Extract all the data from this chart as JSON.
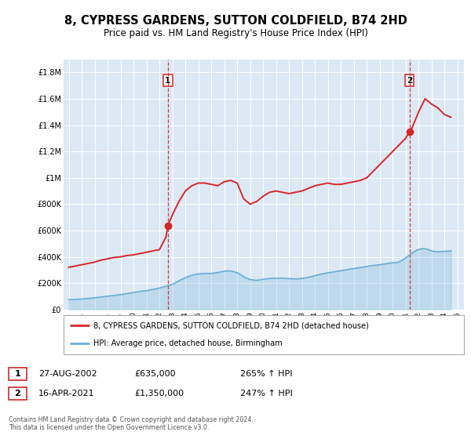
{
  "title": "8, CYPRESS GARDENS, SUTTON COLDFIELD, B74 2HD",
  "subtitle": "Price paid vs. HM Land Registry's House Price Index (HPI)",
  "title_fontsize": 10.5,
  "subtitle_fontsize": 8.5,
  "background_color": "#ffffff",
  "plot_bg_color": "#dce9f5",
  "grid_color": "#ffffff",
  "ylim": [
    0,
    1900000
  ],
  "xlim_start": 1994.6,
  "xlim_end": 2025.5,
  "yticks": [
    0,
    200000,
    400000,
    600000,
    800000,
    1000000,
    1200000,
    1400000,
    1600000,
    1800000
  ],
  "ytick_labels": [
    "£0",
    "£200K",
    "£400K",
    "£600K",
    "£800K",
    "£1M",
    "£1.2M",
    "£1.4M",
    "£1.6M",
    "£1.8M"
  ],
  "xticks": [
    1995,
    1996,
    1997,
    1998,
    1999,
    2000,
    2001,
    2002,
    2003,
    2004,
    2005,
    2006,
    2007,
    2008,
    2009,
    2010,
    2011,
    2012,
    2013,
    2014,
    2015,
    2016,
    2017,
    2018,
    2019,
    2020,
    2021,
    2022,
    2023,
    2024,
    2025
  ],
  "sale1_x": 2002.65,
  "sale1_y": 635000,
  "sale1_label": "1",
  "sale1_date": "27-AUG-2002",
  "sale1_price": "£635,000",
  "sale1_hpi": "265% ↑ HPI",
  "sale2_x": 2021.29,
  "sale2_y": 1350000,
  "sale2_label": "2",
  "sale2_date": "16-APR-2021",
  "sale2_price": "£1,350,000",
  "sale2_hpi": "247% ↑ HPI",
  "hpi_color": "#6baed6",
  "price_color": "#d62728",
  "dashed_line_color": "#d62728",
  "legend_label_price": "8, CYPRESS GARDENS, SUTTON COLDFIELD, B74 2HD (detached house)",
  "legend_label_hpi": "HPI: Average price, detached house, Birmingham",
  "footer_text": "Contains HM Land Registry data © Crown copyright and database right 2024.\nThis data is licensed under the Open Government Licence v3.0.",
  "hpi_data_x": [
    1995.0,
    1995.25,
    1995.5,
    1995.75,
    1996.0,
    1996.25,
    1996.5,
    1996.75,
    1997.0,
    1997.25,
    1997.5,
    1997.75,
    1998.0,
    1998.25,
    1998.5,
    1998.75,
    1999.0,
    1999.25,
    1999.5,
    1999.75,
    2000.0,
    2000.25,
    2000.5,
    2000.75,
    2001.0,
    2001.25,
    2001.5,
    2001.75,
    2002.0,
    2002.25,
    2002.5,
    2002.75,
    2003.0,
    2003.25,
    2003.5,
    2003.75,
    2004.0,
    2004.25,
    2004.5,
    2004.75,
    2005.0,
    2005.25,
    2005.5,
    2005.75,
    2006.0,
    2006.25,
    2006.5,
    2006.75,
    2007.0,
    2007.25,
    2007.5,
    2007.75,
    2008.0,
    2008.25,
    2008.5,
    2008.75,
    2009.0,
    2009.25,
    2009.5,
    2009.75,
    2010.0,
    2010.25,
    2010.5,
    2010.75,
    2011.0,
    2011.25,
    2011.5,
    2011.75,
    2012.0,
    2012.25,
    2012.5,
    2012.75,
    2013.0,
    2013.25,
    2013.5,
    2013.75,
    2014.0,
    2014.25,
    2014.5,
    2014.75,
    2015.0,
    2015.25,
    2015.5,
    2015.75,
    2016.0,
    2016.25,
    2016.5,
    2016.75,
    2017.0,
    2017.25,
    2017.5,
    2017.75,
    2018.0,
    2018.25,
    2018.5,
    2018.75,
    2019.0,
    2019.25,
    2019.5,
    2019.75,
    2020.0,
    2020.25,
    2020.5,
    2020.75,
    2021.0,
    2021.25,
    2021.5,
    2021.75,
    2022.0,
    2022.25,
    2022.5,
    2022.75,
    2023.0,
    2023.25,
    2023.5,
    2023.75,
    2024.0,
    2024.25,
    2024.5
  ],
  "hpi_data_y": [
    75000,
    76000,
    77000,
    78000,
    80000,
    82000,
    84000,
    86000,
    89000,
    92000,
    95000,
    98000,
    101000,
    104000,
    107000,
    110000,
    113000,
    117000,
    121000,
    125000,
    129000,
    133000,
    137000,
    140000,
    143000,
    148000,
    153000,
    158000,
    163000,
    170000,
    177000,
    184000,
    191000,
    205000,
    218000,
    230000,
    241000,
    252000,
    260000,
    267000,
    270000,
    272000,
    274000,
    273000,
    274000,
    277000,
    281000,
    286000,
    291000,
    293000,
    292000,
    287000,
    279000,
    266000,
    249000,
    236000,
    228000,
    224000,
    222000,
    225000,
    230000,
    233000,
    236000,
    237000,
    237000,
    238000,
    238000,
    236000,
    234000,
    233000,
    233000,
    234000,
    236000,
    240000,
    245000,
    251000,
    257000,
    264000,
    269000,
    274000,
    279000,
    283000,
    287000,
    291000,
    295000,
    299000,
    303000,
    307000,
    311000,
    315000,
    319000,
    323000,
    327000,
    331000,
    334000,
    337000,
    340000,
    344000,
    348000,
    352000,
    355000,
    355000,
    362000,
    375000,
    392000,
    410000,
    430000,
    445000,
    455000,
    462000,
    462000,
    455000,
    445000,
    440000,
    438000,
    440000,
    442000,
    443000,
    445000
  ],
  "price_data_x": [
    1995.0,
    1995.5,
    1996.0,
    1996.5,
    1997.0,
    1997.5,
    1998.0,
    1998.5,
    1999.0,
    1999.5,
    2000.0,
    2000.5,
    2001.0,
    2001.5,
    2002.0,
    2002.5,
    2002.65,
    2003.0,
    2003.5,
    2004.0,
    2004.5,
    2005.0,
    2005.5,
    2006.0,
    2006.5,
    2007.0,
    2007.5,
    2008.0,
    2008.5,
    2009.0,
    2009.5,
    2010.0,
    2010.5,
    2011.0,
    2011.5,
    2012.0,
    2012.5,
    2013.0,
    2013.5,
    2014.0,
    2014.5,
    2015.0,
    2015.5,
    2016.0,
    2016.5,
    2017.0,
    2017.5,
    2018.0,
    2018.5,
    2019.0,
    2019.5,
    2020.0,
    2020.5,
    2021.0,
    2021.29,
    2021.5,
    2022.0,
    2022.5,
    2023.0,
    2023.5,
    2024.0,
    2024.5
  ],
  "price_data_y": [
    320000,
    330000,
    340000,
    350000,
    360000,
    375000,
    385000,
    395000,
    400000,
    410000,
    415000,
    425000,
    435000,
    445000,
    455000,
    550000,
    635000,
    720000,
    820000,
    900000,
    940000,
    960000,
    960000,
    950000,
    940000,
    970000,
    980000,
    960000,
    840000,
    800000,
    820000,
    860000,
    890000,
    900000,
    890000,
    880000,
    890000,
    900000,
    920000,
    940000,
    950000,
    960000,
    950000,
    950000,
    960000,
    970000,
    980000,
    1000000,
    1050000,
    1100000,
    1150000,
    1200000,
    1250000,
    1300000,
    1350000,
    1380000,
    1500000,
    1600000,
    1560000,
    1530000,
    1480000,
    1460000
  ]
}
